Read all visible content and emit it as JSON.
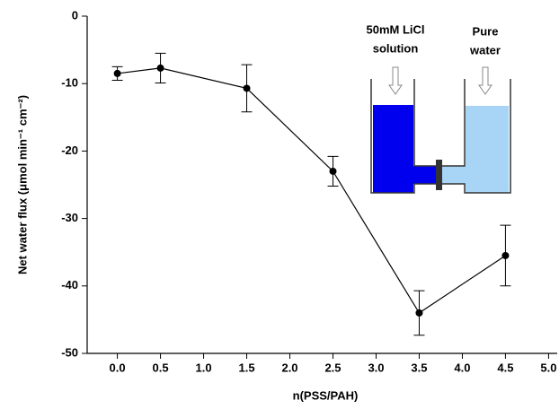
{
  "chart_data": {
    "type": "line",
    "xlabel": "n(PSS/PAH)",
    "ylabel": "Net water flux (μmol min⁻¹ cm⁻²)",
    "x": [
      0.0,
      0.5,
      1.5,
      2.5,
      3.5,
      4.5
    ],
    "values": [
      -8.5,
      -7.7,
      -10.7,
      -23.0,
      -44.0,
      -35.5
    ],
    "errors": [
      1.0,
      2.2,
      3.5,
      2.2,
      3.3,
      4.5
    ],
    "color": "#000000",
    "xlim": [
      -0.35,
      5.1
    ],
    "xticks": [
      {
        "value": 0,
        "label": "0.0"
      },
      0.5,
      {
        "value": 1,
        "label": "1.0"
      },
      1.5,
      {
        "value": 2,
        "label": "2.0"
      },
      2.5,
      {
        "value": 3,
        "label": "3.0"
      },
      3.5,
      {
        "value": 4,
        "label": "4.0"
      },
      4.5,
      {
        "value": 5,
        "label": "5.0"
      }
    ],
    "ylim": [
      -50,
      0
    ],
    "yticks": [
      0,
      -10,
      -20,
      -30,
      -40,
      -50
    ],
    "annotations": [
      "50mM LiCl",
      "solution",
      "Pure",
      "water"
    ]
  }
}
